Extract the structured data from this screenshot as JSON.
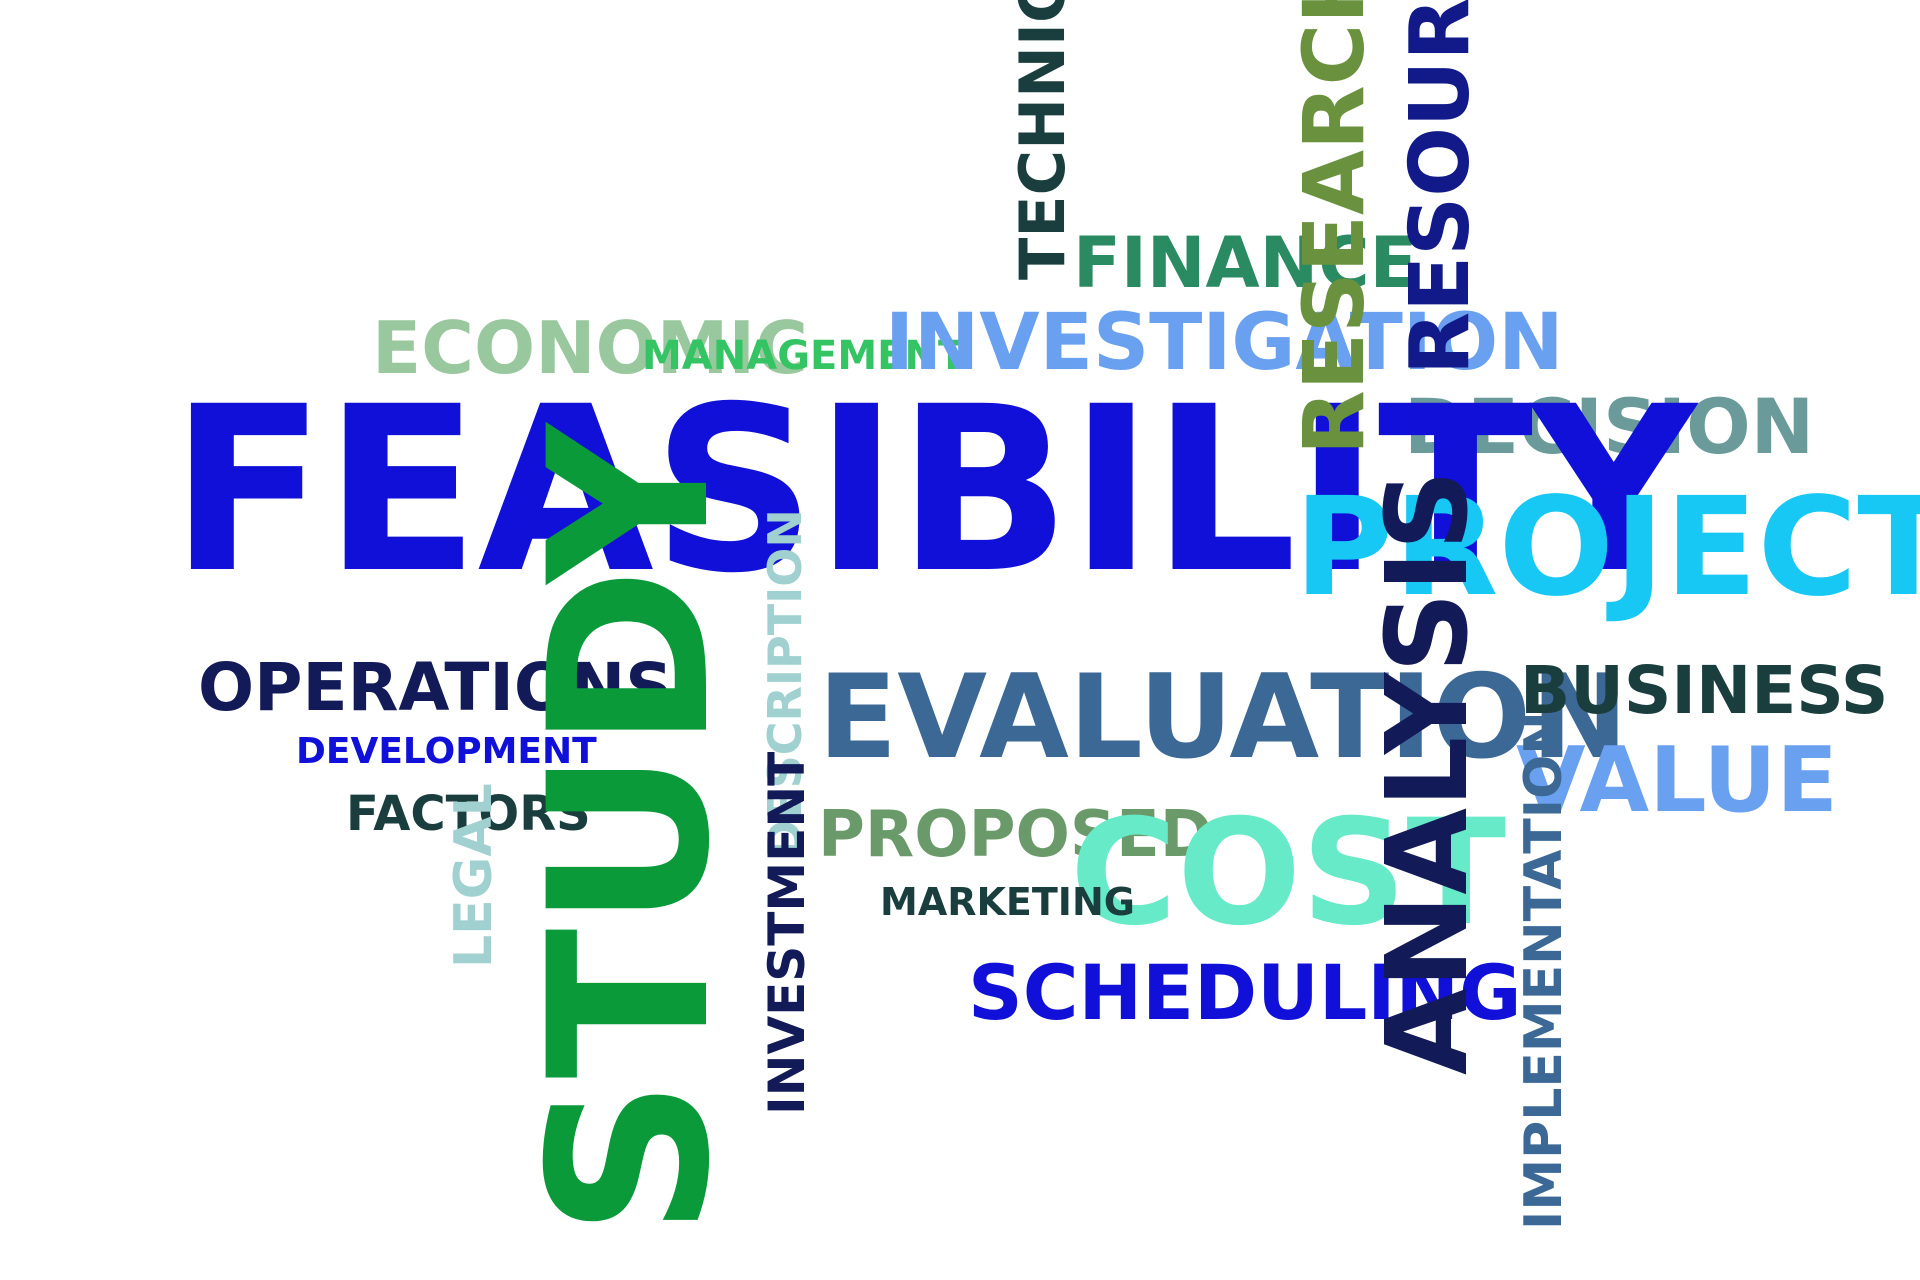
{
  "colors": {
    "background": "#ffffff",
    "royal_blue": "#1010d8",
    "navy": "#121a58",
    "dark_teal": "#1a3e3e",
    "steel_blue": "#3c6896",
    "sky_blue": "#6aa0f0",
    "cyan": "#18c8f4",
    "green": "#0a9a3a",
    "olive_green": "#6a923e",
    "sage": "#9ac89e",
    "mint": "#66eac8",
    "pale_teal": "#a0d0d0",
    "gray_teal": "#6a9a9a",
    "sea_green": "#2a8a62"
  },
  "words": {
    "feasibility": "FEASIBILITY",
    "study": "STUDY",
    "project": "PROJECT",
    "evaluation": "EVALUATION",
    "cost": "COST",
    "analysis": "ANALYSIS",
    "research": "RESEARCH",
    "resources": "RESOURCES",
    "technical": "TECHNICAL",
    "finance": "FINANCE",
    "investigation": "INVESTIGATION",
    "economic": "ECONOMIC",
    "management": "MANAGEMENT",
    "decision": "DECISION",
    "operations": "OPERATIONS",
    "development": "DEVELOPMENT",
    "factors": "FACTORS",
    "legal": "LEGAL",
    "description": "DESCRIPTION",
    "investment": "INVESTMENT",
    "proposed": "PROPOSED",
    "marketing": "MARKETING",
    "scheduling": "SCHEDULING",
    "business": "BUSINESS",
    "value": "VALUE",
    "implementation": "IMPLEMENTATION"
  }
}
